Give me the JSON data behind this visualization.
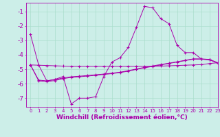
{
  "background_color": "#cceee8",
  "grid_color": "#aaddcc",
  "line_color": "#aa00aa",
  "marker": "+",
  "xlim": [
    -0.5,
    23
  ],
  "ylim": [
    -7.6,
    -0.4
  ],
  "yticks": [
    -7,
    -6,
    -5,
    -4,
    -3,
    -2,
    -1
  ],
  "xticks": [
    0,
    1,
    2,
    3,
    4,
    5,
    6,
    7,
    8,
    9,
    10,
    11,
    12,
    13,
    14,
    15,
    16,
    17,
    18,
    19,
    20,
    21,
    22,
    23
  ],
  "xlabel": "Windchill (Refroidissement éolien,°C)",
  "xlabel_color": "#aa00aa",
  "xlabel_fontsize": 6.5,
  "ytick_fontsize": 6.5,
  "xtick_fontsize": 5.0,
  "x": [
    0,
    1,
    2,
    3,
    4,
    5,
    6,
    7,
    8,
    9,
    10,
    11,
    12,
    13,
    14,
    15,
    16,
    17,
    18,
    19,
    20,
    21,
    22,
    23
  ],
  "line1_y": [
    -2.6,
    -4.7,
    -5.8,
    -5.7,
    -5.5,
    -7.4,
    -7.0,
    -7.0,
    -6.9,
    -5.5,
    -4.5,
    -4.2,
    -3.5,
    -2.1,
    -0.65,
    -0.75,
    -1.5,
    -1.85,
    -3.35,
    -3.85,
    -3.85,
    -4.3,
    -4.35,
    -4.55
  ],
  "line2_y": [
    -4.7,
    -4.72,
    -4.74,
    -4.76,
    -4.78,
    -4.8,
    -4.8,
    -4.8,
    -4.8,
    -4.8,
    -4.8,
    -4.8,
    -4.8,
    -4.8,
    -4.8,
    -4.8,
    -4.78,
    -4.76,
    -4.74,
    -4.72,
    -4.7,
    -4.68,
    -4.6,
    -4.55
  ],
  "line3_y": [
    -4.7,
    -5.75,
    -5.8,
    -5.72,
    -5.6,
    -5.52,
    -5.48,
    -5.43,
    -5.38,
    -5.33,
    -5.27,
    -5.2,
    -5.1,
    -4.98,
    -4.87,
    -4.77,
    -4.67,
    -4.58,
    -4.48,
    -4.38,
    -4.28,
    -4.28,
    -4.32,
    -4.55
  ],
  "line4_y": [
    -4.7,
    -5.8,
    -5.85,
    -5.78,
    -5.65,
    -5.56,
    -5.52,
    -5.47,
    -5.42,
    -5.36,
    -5.3,
    -5.23,
    -5.13,
    -5.01,
    -4.9,
    -4.8,
    -4.7,
    -4.6,
    -4.5,
    -4.4,
    -4.3,
    -4.3,
    -4.35,
    -4.58
  ]
}
